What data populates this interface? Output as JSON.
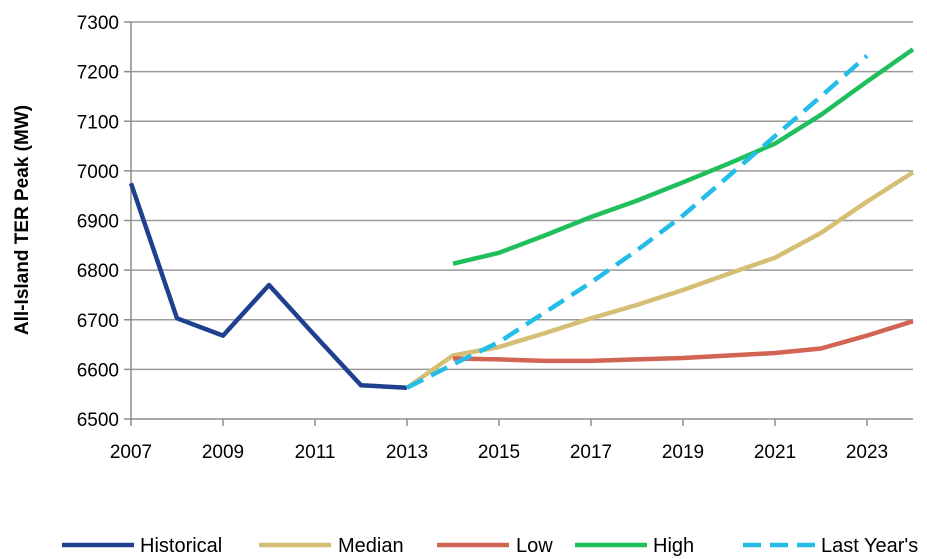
{
  "chart_data": {
    "type": "line",
    "title": "",
    "xlabel": "",
    "ylabel": "All-Island TER Peak (MW)",
    "xlim": [
      2007,
      2024
    ],
    "ylim": [
      6500,
      7300
    ],
    "x_ticks": [
      2007,
      2009,
      2011,
      2013,
      2015,
      2017,
      2019,
      2021,
      2023
    ],
    "y_ticks": [
      6500,
      6600,
      6700,
      6800,
      6900,
      7000,
      7100,
      7200,
      7300
    ],
    "grid": "horizontal",
    "legend_position": "bottom",
    "series": [
      {
        "name": "Historical",
        "color": "#1f3f8f",
        "dash": "solid",
        "x": [
          2007,
          2008,
          2009,
          2010,
          2011,
          2012,
          2013
        ],
        "y": [
          6975,
          6703,
          6668,
          6770,
          6668,
          6568,
          6563
        ]
      },
      {
        "name": "Median",
        "color": "#d4bf74",
        "dash": "solid",
        "x": [
          2013,
          2014,
          2015,
          2016,
          2017,
          2018,
          2019,
          2020,
          2021,
          2022,
          2023,
          2024
        ],
        "y": [
          6563,
          6628,
          6645,
          6673,
          6703,
          6730,
          6760,
          6793,
          6825,
          6875,
          6938,
          6997
        ]
      },
      {
        "name": "Low",
        "color": "#d26454",
        "dash": "solid",
        "x": [
          2014,
          2015,
          2016,
          2017,
          2018,
          2019,
          2020,
          2021,
          2022,
          2023,
          2024
        ],
        "y": [
          6622,
          6620,
          6617,
          6617,
          6620,
          6623,
          6628,
          6633,
          6642,
          6668,
          6697
        ]
      },
      {
        "name": "High",
        "color": "#1fbf5b",
        "dash": "solid",
        "x": [
          2014,
          2015,
          2016,
          2017,
          2018,
          2019,
          2020,
          2021,
          2022,
          2023,
          2024
        ],
        "y": [
          6813,
          6835,
          6870,
          6907,
          6940,
          6977,
          7015,
          7055,
          7113,
          7180,
          7245
        ]
      },
      {
        "name": "Last Year's",
        "color": "#24bde8",
        "dash": "dashed",
        "x": [
          2013,
          2014,
          2015,
          2016,
          2017,
          2018,
          2019,
          2020,
          2021,
          2022,
          2023
        ],
        "y": [
          6563,
          6610,
          6655,
          6715,
          6775,
          6840,
          6910,
          6990,
          7070,
          7150,
          7232
        ]
      }
    ]
  }
}
